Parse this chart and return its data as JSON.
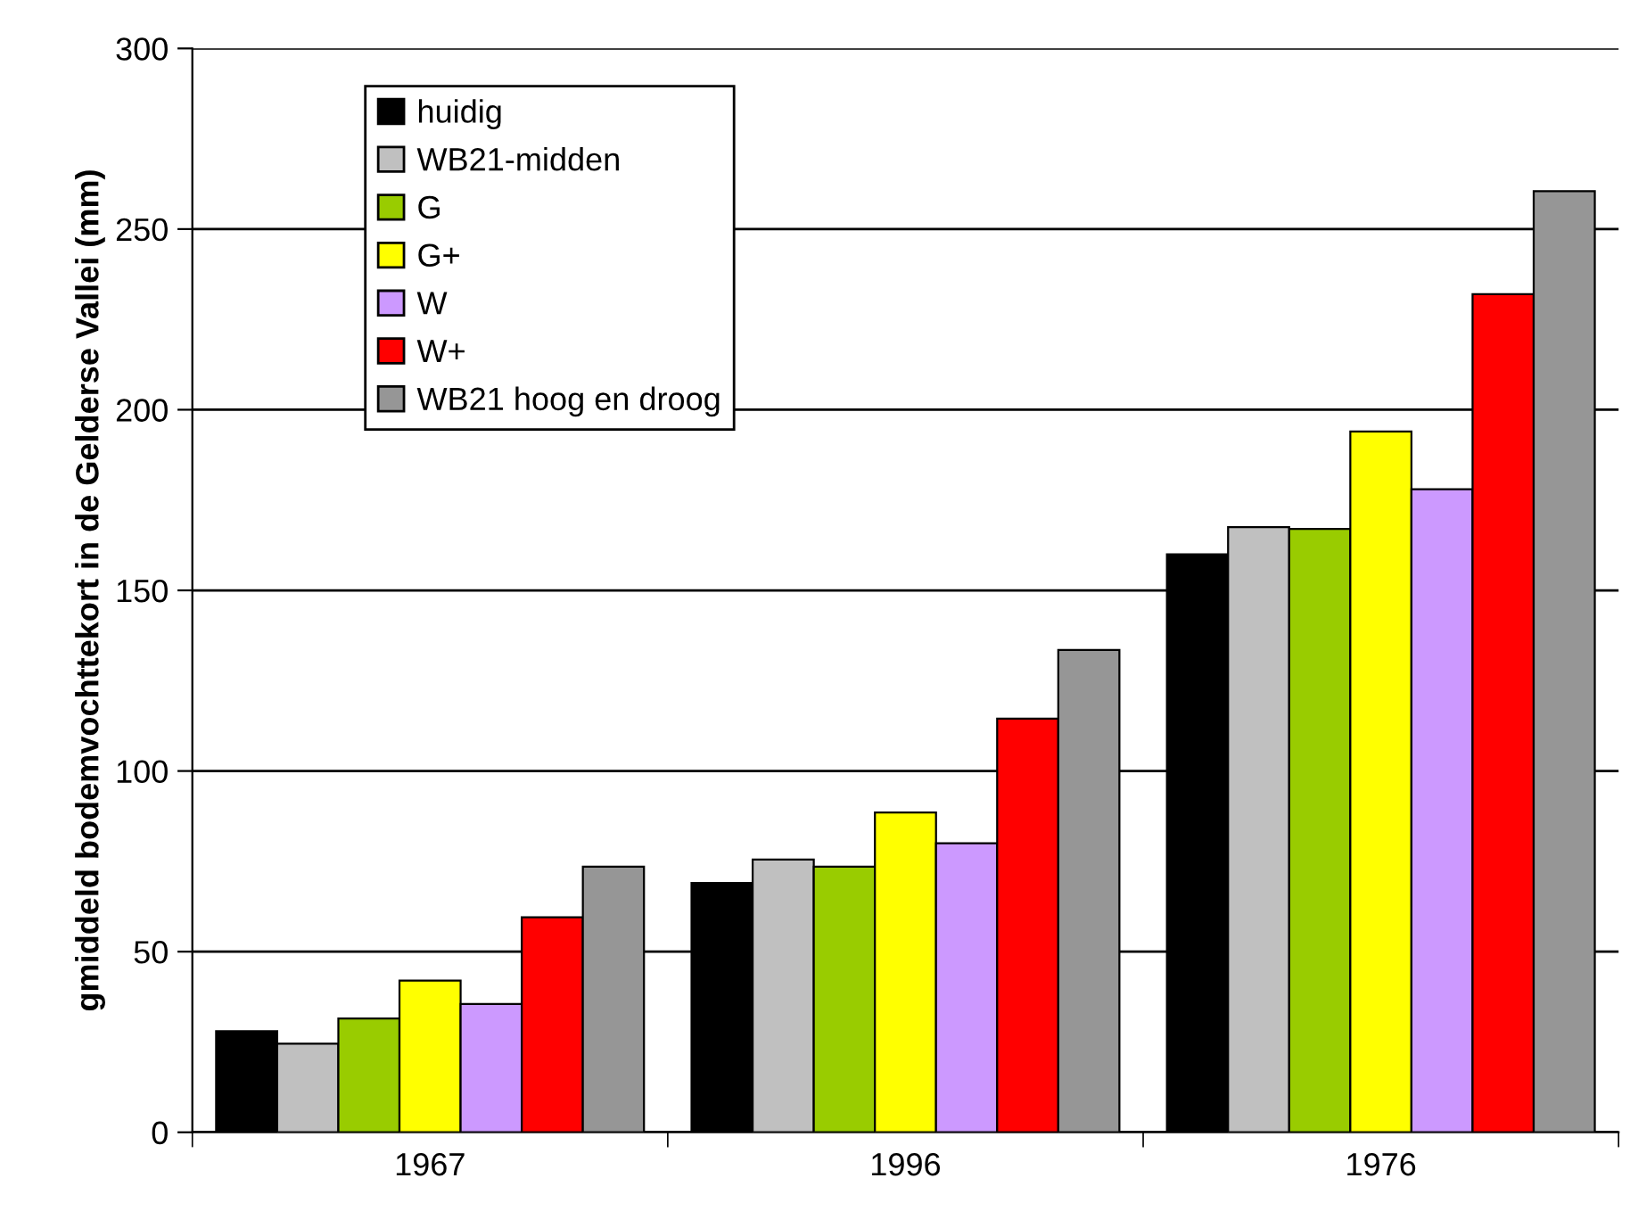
{
  "chart_data": {
    "type": "bar",
    "ylabel": "gmiddeld bodemvochttekort in de Gelderse Vallei (mm)",
    "categories": [
      "1967",
      "1996",
      "1976"
    ],
    "series": [
      {
        "name": "huidig",
        "color": "#000000",
        "values": [
          28,
          69,
          160
        ]
      },
      {
        "name": "WB21-midden",
        "color": "#c0c0c0",
        "values": [
          24.5,
          75.5,
          167.5
        ]
      },
      {
        "name": "G",
        "color": "#99cc00",
        "values": [
          31.5,
          73.5,
          167
        ]
      },
      {
        "name": "G+",
        "color": "#ffff00",
        "values": [
          42,
          88.5,
          194
        ]
      },
      {
        "name": "W",
        "color": "#cc99ff",
        "values": [
          35.5,
          80,
          178
        ]
      },
      {
        "name": "W+",
        "color": "#ff0000",
        "values": [
          59.5,
          114.5,
          232
        ]
      },
      {
        "name": "WB21 hoog en droog",
        "color": "#969696",
        "values": [
          73.5,
          133.5,
          260.5
        ]
      }
    ],
    "ylim": [
      0,
      300
    ],
    "yticks": [
      0,
      50,
      100,
      150,
      200,
      250,
      300
    ],
    "grid": "y",
    "legend": "top left"
  }
}
